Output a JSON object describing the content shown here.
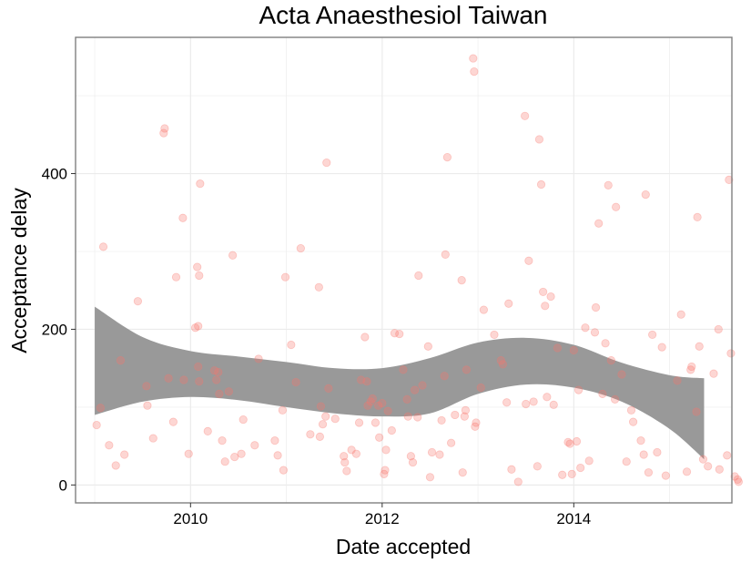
{
  "chart_data": {
    "type": "scatter",
    "title": "Acta Anaesthesiol Taiwan",
    "xlabel": "Date accepted",
    "ylabel": "Acceptance delay",
    "x_ticks": [
      2010,
      2012,
      2014
    ],
    "y_ticks": [
      0,
      200,
      400
    ],
    "xlim": [
      2008.8,
      2015.65
    ],
    "ylim": [
      -23,
      575
    ],
    "grid": true,
    "colors": {
      "points": "#f8766d",
      "band": "#999999",
      "grid": "#ebebeb",
      "panel_border": "#7f7f7f"
    },
    "points": [
      [
        2009.02,
        77
      ],
      [
        2009.06,
        99
      ],
      [
        2009.09,
        306
      ],
      [
        2009.15,
        51
      ],
      [
        2009.22,
        25
      ],
      [
        2009.27,
        160
      ],
      [
        2009.31,
        39
      ],
      [
        2009.45,
        236
      ],
      [
        2009.54,
        127
      ],
      [
        2009.55,
        102
      ],
      [
        2009.61,
        60
      ],
      [
        2009.72,
        452
      ],
      [
        2009.73,
        458
      ],
      [
        2009.77,
        137
      ],
      [
        2009.82,
        81
      ],
      [
        2009.85,
        267
      ],
      [
        2009.92,
        343
      ],
      [
        2009.93,
        135
      ],
      [
        2009.98,
        40
      ],
      [
        2010.05,
        202
      ],
      [
        2010.07,
        280
      ],
      [
        2010.08,
        204
      ],
      [
        2010.09,
        269
      ],
      [
        2010.1,
        387
      ],
      [
        2010.08,
        152
      ],
      [
        2010.09,
        133
      ],
      [
        2010.18,
        69
      ],
      [
        2010.25,
        147
      ],
      [
        2010.27,
        135
      ],
      [
        2010.29,
        145
      ],
      [
        2010.3,
        117
      ],
      [
        2010.33,
        57
      ],
      [
        2010.36,
        30
      ],
      [
        2010.4,
        120
      ],
      [
        2010.44,
        295
      ],
      [
        2010.46,
        36
      ],
      [
        2010.53,
        40
      ],
      [
        2010.55,
        84
      ],
      [
        2010.67,
        51
      ],
      [
        2010.71,
        162
      ],
      [
        2010.88,
        57
      ],
      [
        2010.91,
        38
      ],
      [
        2010.96,
        96
      ],
      [
        2010.97,
        19
      ],
      [
        2010.99,
        267
      ],
      [
        2011.05,
        180
      ],
      [
        2011.1,
        132
      ],
      [
        2011.15,
        304
      ],
      [
        2011.25,
        65
      ],
      [
        2011.34,
        254
      ],
      [
        2011.36,
        101
      ],
      [
        2011.38,
        78
      ],
      [
        2011.35,
        62
      ],
      [
        2011.41,
        88
      ],
      [
        2011.42,
        414
      ],
      [
        2011.44,
        124
      ],
      [
        2011.51,
        85
      ],
      [
        2011.6,
        37
      ],
      [
        2011.61,
        29
      ],
      [
        2011.63,
        18
      ],
      [
        2011.68,
        45
      ],
      [
        2011.73,
        40
      ],
      [
        2011.76,
        80
      ],
      [
        2011.78,
        135
      ],
      [
        2011.82,
        190
      ],
      [
        2011.84,
        133
      ],
      [
        2011.85,
        102
      ],
      [
        2011.88,
        107
      ],
      [
        2011.9,
        111
      ],
      [
        2011.93,
        80
      ],
      [
        2011.96,
        102
      ],
      [
        2011.97,
        61
      ],
      [
        2012.0,
        105
      ],
      [
        2012.02,
        14
      ],
      [
        2012.03,
        19
      ],
      [
        2012.04,
        45
      ],
      [
        2012.06,
        95
      ],
      [
        2012.1,
        70
      ],
      [
        2012.13,
        195
      ],
      [
        2012.18,
        194
      ],
      [
        2012.22,
        148
      ],
      [
        2012.26,
        110
      ],
      [
        2012.27,
        88
      ],
      [
        2012.3,
        37
      ],
      [
        2012.32,
        29
      ],
      [
        2012.34,
        122
      ],
      [
        2012.37,
        87
      ],
      [
        2012.38,
        269
      ],
      [
        2012.42,
        128
      ],
      [
        2012.48,
        178
      ],
      [
        2012.5,
        10
      ],
      [
        2012.52,
        42
      ],
      [
        2012.6,
        39
      ],
      [
        2012.62,
        83
      ],
      [
        2012.65,
        140
      ],
      [
        2012.66,
        296
      ],
      [
        2012.68,
        421
      ],
      [
        2012.72,
        54
      ],
      [
        2012.76,
        90
      ],
      [
        2012.83,
        263
      ],
      [
        2012.84,
        16
      ],
      [
        2012.86,
        88
      ],
      [
        2012.87,
        96
      ],
      [
        2012.88,
        148
      ],
      [
        2012.95,
        548
      ],
      [
        2012.96,
        531
      ],
      [
        2012.97,
        75
      ],
      [
        2012.98,
        80
      ],
      [
        2013.03,
        125
      ],
      [
        2013.06,
        225
      ],
      [
        2013.17,
        193
      ],
      [
        2013.24,
        160
      ],
      [
        2013.26,
        155
      ],
      [
        2013.3,
        106
      ],
      [
        2013.32,
        233
      ],
      [
        2013.35,
        20
      ],
      [
        2013.42,
        4
      ],
      [
        2013.49,
        474
      ],
      [
        2013.5,
        104
      ],
      [
        2013.53,
        288
      ],
      [
        2013.58,
        107
      ],
      [
        2013.62,
        24
      ],
      [
        2013.64,
        444
      ],
      [
        2013.66,
        386
      ],
      [
        2013.68,
        248
      ],
      [
        2013.7,
        230
      ],
      [
        2013.72,
        113
      ],
      [
        2013.76,
        242
      ],
      [
        2013.79,
        103
      ],
      [
        2013.83,
        176
      ],
      [
        2013.88,
        13
      ],
      [
        2013.94,
        55
      ],
      [
        2013.96,
        53
      ],
      [
        2013.98,
        14
      ],
      [
        2014.0,
        173
      ],
      [
        2014.03,
        56
      ],
      [
        2014.05,
        122
      ],
      [
        2014.07,
        22
      ],
      [
        2014.12,
        202
      ],
      [
        2014.16,
        31
      ],
      [
        2014.22,
        196
      ],
      [
        2014.23,
        228
      ],
      [
        2014.26,
        336
      ],
      [
        2014.3,
        117
      ],
      [
        2014.33,
        182
      ],
      [
        2014.36,
        385
      ],
      [
        2014.39,
        160
      ],
      [
        2014.43,
        110
      ],
      [
        2014.44,
        357
      ],
      [
        2014.5,
        142
      ],
      [
        2014.55,
        30
      ],
      [
        2014.6,
        96
      ],
      [
        2014.62,
        81
      ],
      [
        2014.7,
        57
      ],
      [
        2014.73,
        39
      ],
      [
        2014.75,
        373
      ],
      [
        2014.78,
        16
      ],
      [
        2014.82,
        193
      ],
      [
        2014.87,
        42
      ],
      [
        2014.92,
        177
      ],
      [
        2014.96,
        12
      ],
      [
        2015.08,
        134
      ],
      [
        2015.12,
        219
      ],
      [
        2015.18,
        17
      ],
      [
        2015.22,
        148
      ],
      [
        2015.23,
        152
      ],
      [
        2015.28,
        94
      ],
      [
        2015.29,
        344
      ],
      [
        2015.31,
        178
      ],
      [
        2015.35,
        33
      ],
      [
        2015.4,
        24
      ],
      [
        2015.46,
        143
      ],
      [
        2015.51,
        200
      ],
      [
        2015.52,
        20
      ],
      [
        2015.6,
        38
      ],
      [
        2015.62,
        392
      ],
      [
        2015.64,
        169
      ],
      [
        2015.68,
        11
      ],
      [
        2015.71,
        7
      ],
      [
        2015.72,
        4
      ]
    ],
    "band": {
      "x": [
        2009.0,
        2009.5,
        2010.0,
        2010.5,
        2011.0,
        2011.5,
        2012.0,
        2012.5,
        2013.0,
        2013.5,
        2014.0,
        2014.5,
        2015.0,
        2015.36
      ],
      "upper": [
        229,
        190,
        172,
        165,
        158,
        150,
        150,
        163,
        183,
        189,
        180,
        157,
        141,
        137
      ],
      "lower": [
        90,
        107,
        113,
        109,
        100,
        92,
        88,
        92,
        117,
        129,
        125,
        107,
        72,
        33
      ]
    }
  }
}
